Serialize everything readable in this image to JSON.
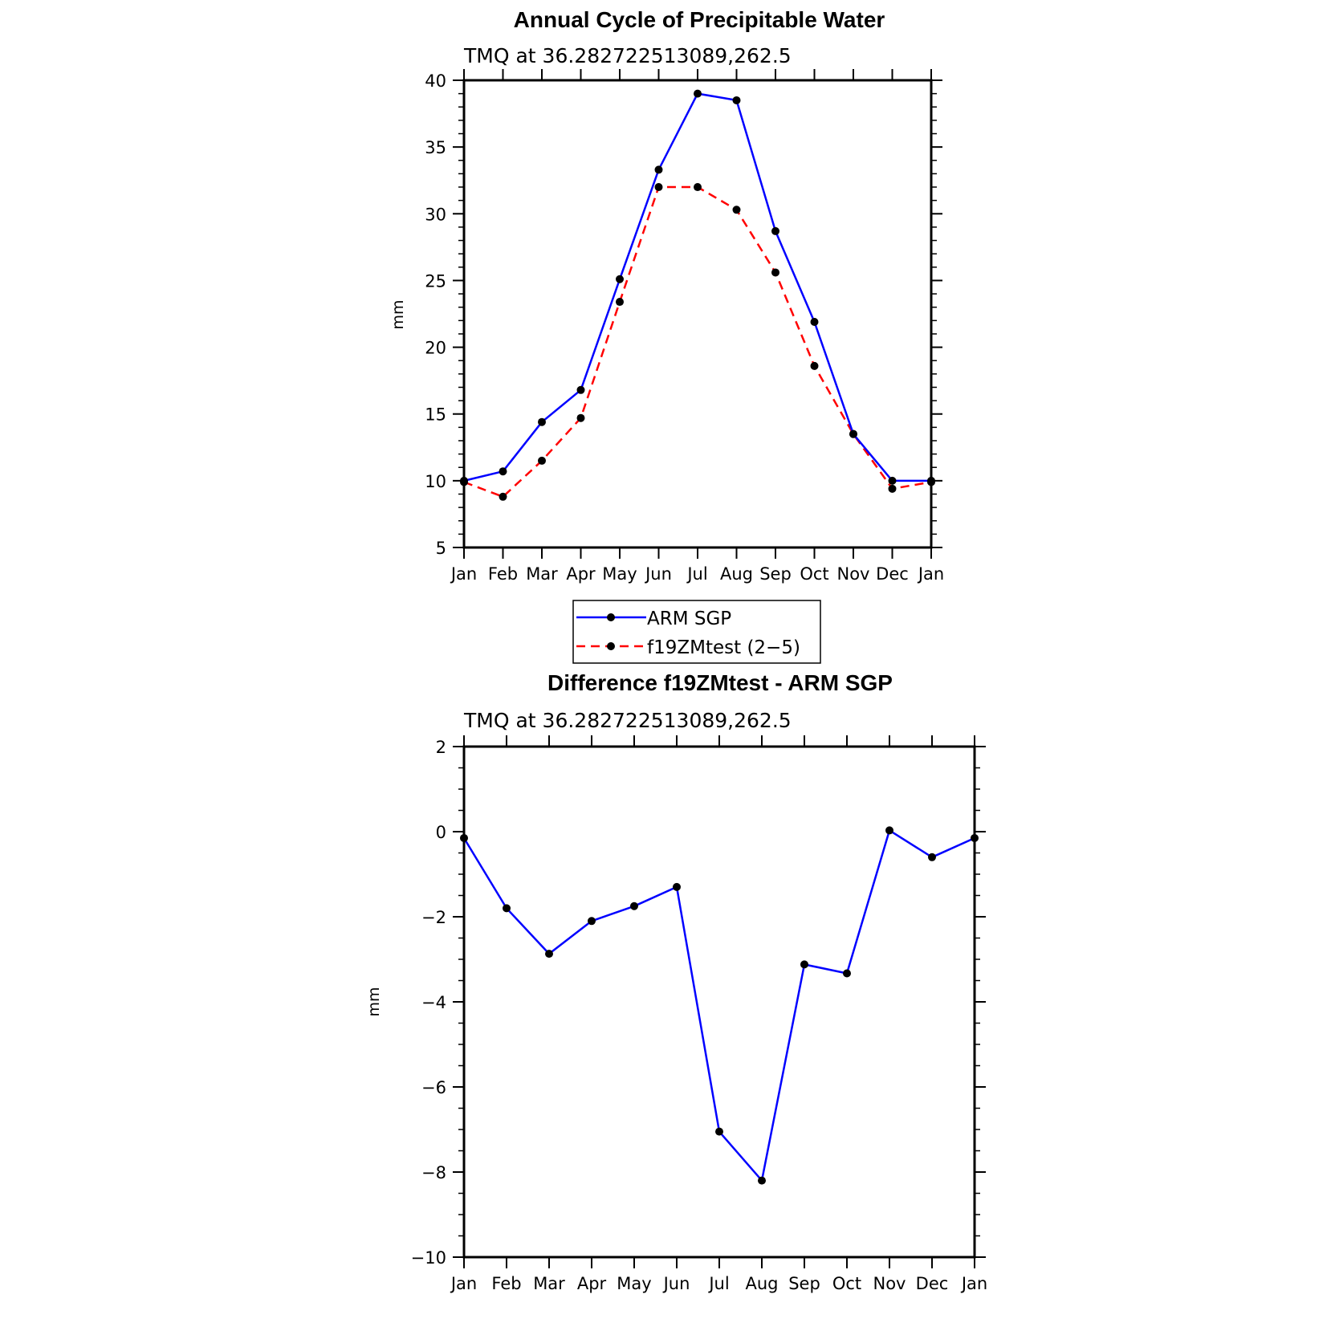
{
  "chart_data": [
    {
      "type": "line",
      "title": "Annual Cycle of Precipitable Water",
      "subtitle": "TMQ at 36.282722513089,262.5",
      "xlabel": "",
      "ylabel": "mm",
      "categories": [
        "Jan",
        "Feb",
        "Mar",
        "Apr",
        "May",
        "Jun",
        "Jul",
        "Aug",
        "Sep",
        "Oct",
        "Nov",
        "Dec",
        "Jan"
      ],
      "ylim": [
        5,
        40
      ],
      "yticks": [
        5,
        10,
        15,
        20,
        25,
        30,
        35,
        40
      ],
      "series": [
        {
          "name": "ARM SGP",
          "color": "#0000ff",
          "dash": "solid",
          "values": [
            10.0,
            10.7,
            14.4,
            16.8,
            25.1,
            33.3,
            39.0,
            38.5,
            28.7,
            21.9,
            13.5,
            10.0,
            10.0
          ]
        },
        {
          "name": "f19ZMtest (2−5)",
          "color": "#ff0000",
          "dash": "dashed",
          "values": [
            9.9,
            8.8,
            11.5,
            14.7,
            23.4,
            32.0,
            32.0,
            30.3,
            25.6,
            18.6,
            13.5,
            9.4,
            9.9
          ]
        }
      ],
      "legend": {
        "position": "bottom-center",
        "entries": [
          "ARM SGP",
          "f19ZMtest (2−5)"
        ]
      }
    },
    {
      "type": "line",
      "title": "Difference f19ZMtest - ARM SGP",
      "subtitle": "TMQ at 36.282722513089,262.5",
      "xlabel": "",
      "ylabel": "mm",
      "categories": [
        "Jan",
        "Feb",
        "Mar",
        "Apr",
        "May",
        "Jun",
        "Jul",
        "Aug",
        "Sep",
        "Oct",
        "Nov",
        "Dec",
        "Jan"
      ],
      "ylim": [
        -10,
        2
      ],
      "yticks": [
        -10,
        -8,
        -6,
        -4,
        -2,
        0,
        2
      ],
      "ytick_labels": [
        "−10",
        "−8",
        "−6",
        "−4",
        "−2",
        "0",
        "2"
      ],
      "series": [
        {
          "name": "Difference",
          "color": "#0000ff",
          "dash": "solid",
          "values": [
            -0.15,
            -1.8,
            -2.87,
            -2.1,
            -1.75,
            -1.3,
            -7.05,
            -8.2,
            -3.12,
            -3.33,
            0.03,
            -0.6,
            -0.15
          ]
        }
      ]
    }
  ]
}
